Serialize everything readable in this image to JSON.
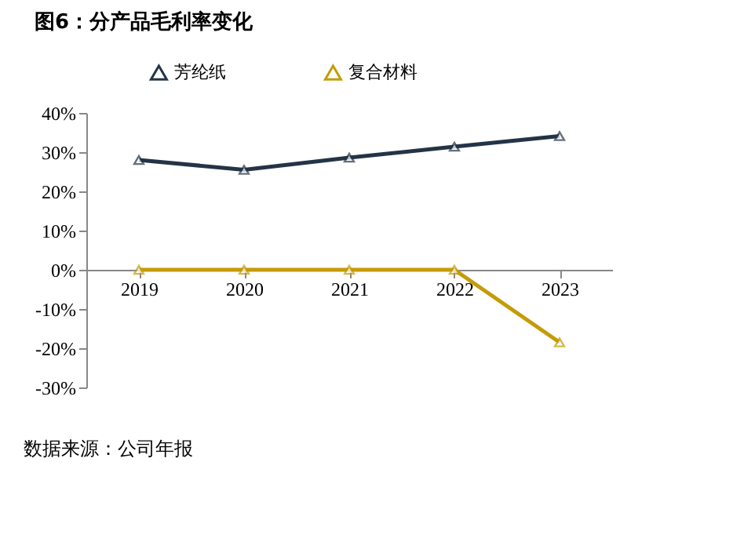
{
  "chart_data": {
    "type": "line",
    "title": "图6：分产品毛利率变化",
    "categories": [
      "2019",
      "2020",
      "2021",
      "2022",
      "2023"
    ],
    "series": [
      {
        "name": "芳纶纸",
        "color": "#243447",
        "values": [
          28,
          25.5,
          28.6,
          31.4,
          34.1
        ]
      },
      {
        "name": "复合材料",
        "color": "#c59b08",
        "values": [
          0,
          0,
          0,
          0,
          -18.5
        ]
      }
    ],
    "ylim": [
      -30,
      40
    ],
    "yticks": [
      {
        "value": -30,
        "label": "-30%"
      },
      {
        "value": -20,
        "label": "-20%"
      },
      {
        "value": -10,
        "label": "-10%"
      },
      {
        "value": 0,
        "label": "0%"
      },
      {
        "value": 10,
        "label": "10%"
      },
      {
        "value": 20,
        "label": "20%"
      },
      {
        "value": 30,
        "label": "30%"
      },
      {
        "value": 40,
        "label": "40%"
      }
    ],
    "marker": "triangle",
    "line_style": "solid",
    "grid": false,
    "legend": "top",
    "annotations": [
      "数据来源：公司年报"
    ]
  }
}
